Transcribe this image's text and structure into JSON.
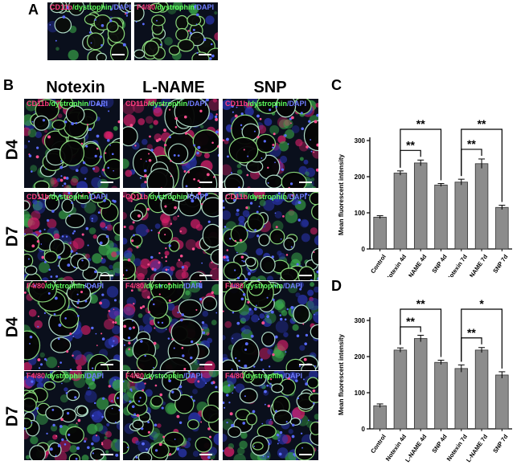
{
  "panels": {
    "A": "A",
    "B": "B",
    "C": "C",
    "D": "D"
  },
  "panel_a": {
    "tiles": [
      {
        "marker1": "CD11b",
        "marker2": "/dystrophin",
        "marker3": "/DAPI"
      },
      {
        "marker1": "F4/80",
        "marker2": "/dystrophin",
        "marker3": "/DAPI"
      }
    ]
  },
  "panel_b": {
    "columns": [
      "Notexin",
      "L-NAME",
      "SNP"
    ],
    "rows": [
      "D4",
      "D7",
      "D4",
      "D7"
    ],
    "row_markers": [
      {
        "marker1": "CD11b",
        "marker2": "/dystrophin",
        "marker3": "/DAPI"
      },
      {
        "marker1": "CD11b",
        "marker2": "/dystrophin",
        "marker3": "/DAPI"
      },
      {
        "marker1": "F4/80",
        "marker2": "/dystrophin",
        "marker3": "/DAPI"
      },
      {
        "marker1": "F4/80",
        "marker2": "/dystrophin",
        "marker3": "/DAPI"
      }
    ]
  },
  "colors": {
    "bar_fill": "#8c8c8c",
    "marker_red": "#ff3d7f",
    "marker_green": "#5dff5d",
    "marker_blue": "#6f7dff"
  },
  "chart_data": [
    {
      "type": "bar",
      "panel": "C",
      "categories": [
        "Control",
        "Notexin 4d",
        "L-NAME 4d",
        "SNP 4d",
        "Notexin 7d",
        "L-NAME 7d",
        "SNP 7d"
      ],
      "values": [
        88,
        210,
        238,
        177,
        185,
        236,
        115
      ],
      "errors": [
        4,
        6,
        8,
        4,
        8,
        13,
        6
      ],
      "ylabel": "Mean fluorescent intensity",
      "ylim": [
        0,
        300
      ],
      "yticks": [
        0,
        100,
        200,
        300
      ],
      "significance": [
        {
          "from": 1,
          "to": 2,
          "label": "**",
          "level": 1
        },
        {
          "from": 1,
          "to": 3,
          "label": "**",
          "level": 2
        },
        {
          "from": 4,
          "to": 5,
          "label": "**",
          "level": 1
        },
        {
          "from": 4,
          "to": 6,
          "label": "**",
          "level": 2
        }
      ]
    },
    {
      "type": "bar",
      "panel": "D",
      "categories": [
        "Control",
        "Notexin 4d",
        "L-NAME 4d",
        "SNP 4d",
        "Notexin 7d",
        "L-NAME 7d",
        "SNP 7d"
      ],
      "values": [
        64,
        218,
        250,
        184,
        167,
        218,
        149
      ],
      "errors": [
        5,
        6,
        9,
        6,
        10,
        7,
        9
      ],
      "ylabel": "Mean fluorescent intensity",
      "ylim": [
        0,
        300
      ],
      "yticks": [
        0,
        100,
        200,
        300
      ],
      "significance": [
        {
          "from": 1,
          "to": 2,
          "label": "**",
          "level": 1
        },
        {
          "from": 1,
          "to": 3,
          "label": "**",
          "level": 2
        },
        {
          "from": 4,
          "to": 5,
          "label": "**",
          "level": 1
        },
        {
          "from": 4,
          "to": 6,
          "label": "*",
          "level": 2
        }
      ]
    }
  ]
}
